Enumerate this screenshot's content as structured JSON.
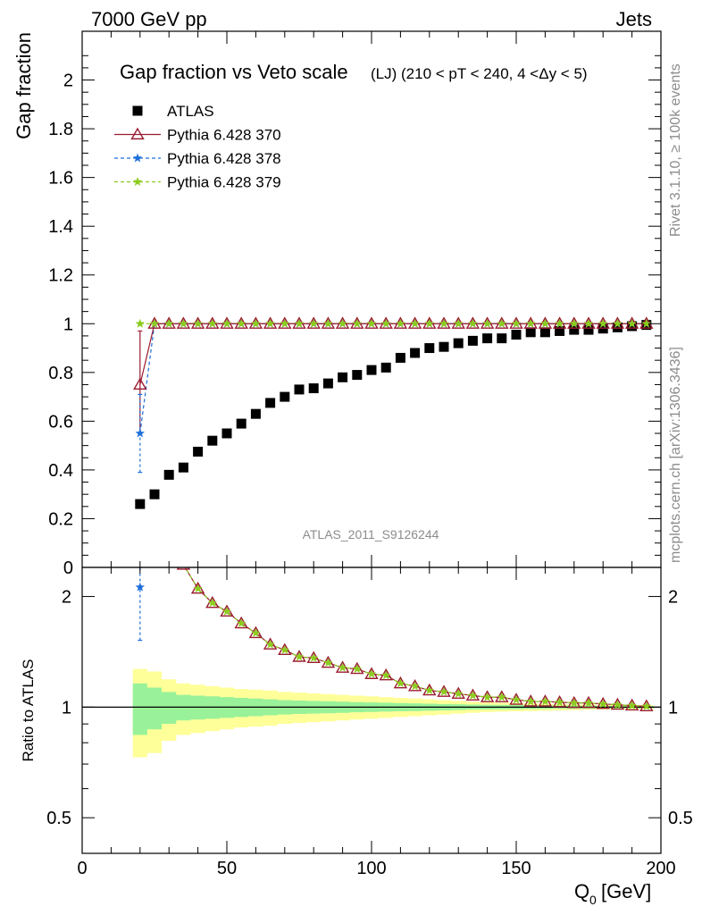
{
  "header": {
    "left_label": "7000 GeV pp",
    "right_label": "Jets",
    "side_label_top": "Rivet 3.1.10, ≥ 100k events",
    "side_label_bottom": "mcplots.cern.ch [arXiv:1306.3436]",
    "analysis_id": "ATLAS_2011_S9126244"
  },
  "chart_data": [
    {
      "type": "scatter",
      "title": "Gap fraction vs Veto scale",
      "subtitle": "(LJ) (210 < pT < 240, 4 <Δy < 5)",
      "xlabel": "Q",
      "xlabel_sub": "0",
      "xlabel_unit": "[GeV]",
      "ylabel": "Gap fraction",
      "xlim": [
        0,
        200
      ],
      "ylim": [
        0,
        2.2
      ],
      "yticks": [
        0,
        0.2,
        0.4,
        0.6,
        0.8,
        1,
        1.2,
        1.4,
        1.6,
        1.8,
        2
      ],
      "ytick_labels": [
        "0",
        "0.2",
        "0.4",
        "0.6",
        "0.8",
        "1",
        "1.2",
        "1.4",
        "1.6",
        "1.8",
        "2"
      ],
      "legend_position": "top-left",
      "x": [
        20,
        25,
        30,
        35,
        40,
        45,
        50,
        55,
        60,
        65,
        70,
        75,
        80,
        85,
        90,
        95,
        100,
        105,
        110,
        115,
        120,
        125,
        130,
        135,
        140,
        145,
        150,
        155,
        160,
        165,
        170,
        175,
        180,
        185,
        190,
        195
      ],
      "series": [
        {
          "name": "ATLAS",
          "color": "#000000",
          "marker": "square",
          "values": [
            0.26,
            0.3,
            0.38,
            0.41,
            0.475,
            0.52,
            0.55,
            0.59,
            0.63,
            0.675,
            0.7,
            0.73,
            0.735,
            0.755,
            0.78,
            0.79,
            0.81,
            0.82,
            0.86,
            0.88,
            0.9,
            0.905,
            0.92,
            0.93,
            0.94,
            0.94,
            0.955,
            0.965,
            0.965,
            0.97,
            0.975,
            0.975,
            0.98,
            0.985,
            0.99,
            0.995
          ]
        },
        {
          "name": "Pythia 6.428 370",
          "color": "#9b1b30",
          "marker": "open-triangle",
          "line": "solid",
          "values": [
            0.75,
            1,
            1,
            1,
            1,
            1,
            1,
            1,
            1,
            1,
            1,
            1,
            1,
            1,
            1,
            1,
            1,
            1,
            1,
            1,
            1,
            1,
            1,
            1,
            1,
            1,
            1,
            1,
            1,
            1,
            1,
            1,
            1,
            1,
            1,
            1
          ],
          "err_low": [
            0.55
          ],
          "err_high": [
            0.97
          ]
        },
        {
          "name": "Pythia 6.428 378",
          "color": "#1e6fd9",
          "marker": "star",
          "line": "dashed",
          "values": [
            0.55,
            1,
            1,
            1,
            1,
            1,
            1,
            1,
            1,
            1,
            1,
            1,
            1,
            1,
            1,
            1,
            1,
            1,
            1,
            1,
            1,
            1,
            1,
            1,
            1,
            1,
            1,
            1,
            1,
            1,
            1,
            1,
            1,
            1,
            1,
            1
          ],
          "err_low": [
            0.39
          ],
          "err_high": [
            0.71
          ]
        },
        {
          "name": "Pythia 6.428 379",
          "color": "#8ccc1f",
          "marker": "star",
          "line": "dashed",
          "values": [
            1,
            1,
            1,
            1,
            1,
            1,
            1,
            1,
            1,
            1,
            1,
            1,
            1,
            1,
            1,
            1,
            1,
            1,
            1,
            1,
            1,
            1,
            1,
            1,
            1,
            1,
            1,
            1,
            1,
            1,
            1,
            1,
            1,
            1,
            1,
            1
          ]
        }
      ]
    },
    {
      "type": "line",
      "ylabel": "Ratio to ATLAS",
      "xlabel": "Q",
      "xlabel_sub": "0",
      "xlabel_unit": "[GeV]",
      "xlim": [
        0,
        200
      ],
      "ylim": [
        0.4,
        2.4
      ],
      "log_y": true,
      "yticks": [
        0.5,
        1,
        2
      ],
      "ytick_labels": [
        "0.5",
        "1",
        "2"
      ],
      "xticks": [
        0,
        50,
        100,
        150,
        200
      ],
      "xtick_labels": [
        "0",
        "50",
        "100",
        "150",
        "200"
      ],
      "band_x": [
        17.5,
        22.5,
        27.5,
        32.5,
        37.5,
        42.5,
        47.5,
        52.5,
        57.5,
        62.5,
        67.5,
        72.5,
        77.5,
        82.5,
        87.5,
        92.5,
        97.5,
        102.5,
        107.5,
        112.5,
        117.5,
        122.5,
        127.5,
        132.5,
        137.5,
        142.5,
        147.5,
        152.5,
        157.5,
        162.5,
        167.5,
        172.5,
        177.5,
        182.5,
        187.5,
        192.5,
        197.5
      ],
      "band_stat": [
        0.16,
        0.13,
        0.1,
        0.08,
        0.075,
        0.07,
        0.065,
        0.06,
        0.055,
        0.05,
        0.045,
        0.042,
        0.04,
        0.038,
        0.035,
        0.032,
        0.03,
        0.028,
        0.026,
        0.024,
        0.022,
        0.02,
        0.018,
        0.016,
        0.015,
        0.014,
        0.013,
        0.012,
        0.011,
        0.01,
        0.01,
        0.009,
        0.008,
        0.008,
        0.007,
        0.007
      ],
      "band_total": [
        0.27,
        0.25,
        0.19,
        0.16,
        0.15,
        0.14,
        0.13,
        0.12,
        0.115,
        0.11,
        0.1,
        0.095,
        0.09,
        0.085,
        0.08,
        0.075,
        0.07,
        0.065,
        0.06,
        0.055,
        0.05,
        0.045,
        0.04,
        0.035,
        0.03,
        0.028,
        0.026,
        0.024,
        0.022,
        0.02,
        0.018,
        0.016,
        0.014,
        0.013,
        0.012,
        0.012
      ],
      "band_colors": {
        "stat": "#99f299",
        "total": "#ffff99"
      },
      "series": [
        {
          "name": "Pythia 6.428 370",
          "color": "#9b1b30",
          "marker": "open-triangle",
          "values": [
            null,
            null,
            null,
            2.44,
            2.1,
            1.92,
            1.82,
            1.69,
            1.59,
            1.48,
            1.43,
            1.37,
            1.36,
            1.32,
            1.28,
            1.27,
            1.23,
            1.22,
            1.16,
            1.14,
            1.11,
            1.1,
            1.087,
            1.075,
            1.064,
            1.064,
            1.047,
            1.036,
            1.036,
            1.031,
            1.026,
            1.026,
            1.02,
            1.015,
            1.01,
            1.005
          ]
        },
        {
          "name": "Pythia 6.428 378",
          "color": "#1e6fd9",
          "marker": "star",
          "values": [
            2.12
          ],
          "err_low": [
            1.52
          ],
          "err_high": [
            2.4
          ]
        },
        {
          "name": "Pythia 6.428 379",
          "color": "#8ccc1f",
          "marker": "star",
          "values": [
            null,
            null,
            null,
            2.44,
            2.1,
            1.92,
            1.82,
            1.69,
            1.59,
            1.48,
            1.43,
            1.37,
            1.36,
            1.32,
            1.28,
            1.27,
            1.23,
            1.22,
            1.16,
            1.14,
            1.11,
            1.1,
            1.087,
            1.075,
            1.064,
            1.064,
            1.047,
            1.036,
            1.036,
            1.031,
            1.026,
            1.026,
            1.02,
            1.015,
            1.01,
            1.005
          ]
        }
      ]
    }
  ]
}
